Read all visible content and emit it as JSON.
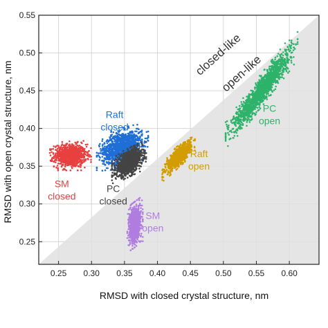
{
  "chart_data": {
    "type": "scatter",
    "xlabel": "RMSD with closed crystal structure, nm",
    "ylabel": "RMSD with open crystal structure, nm",
    "xlim": [
      0.22,
      0.645
    ],
    "ylim": [
      0.22,
      0.55
    ],
    "xticks": [
      "0.25",
      "0.30",
      "0.35",
      "0.40",
      "0.45",
      "0.50",
      "0.55",
      "0.60"
    ],
    "yticks": [
      "0.25",
      "0.30",
      "0.35",
      "0.40",
      "0.45",
      "0.50",
      "0.55"
    ],
    "xtick_values": [
      0.25,
      0.3,
      0.35,
      0.4,
      0.45,
      0.5,
      0.55,
      0.6
    ],
    "ytick_values": [
      0.25,
      0.3,
      0.35,
      0.4,
      0.45,
      0.5,
      0.55
    ],
    "grid": true,
    "diagonal_shading": {
      "from": [
        0.22,
        0.22
      ],
      "to": [
        0.645,
        0.55
      ],
      "color": "#e0e0e0"
    },
    "region_labels": [
      {
        "text": "closed-like",
        "x": 0.5,
        "y": 0.49
      },
      {
        "text": "open-like",
        "x": 0.52,
        "y": 0.48
      }
    ],
    "clusters": [
      {
        "label_lines": [
          "SM",
          "closed"
        ],
        "label_x": 0.255,
        "label_y": 0.322,
        "color": "#e8403f",
        "cx": 0.268,
        "cy": 0.364,
        "sx": 0.012,
        "sy": 0.0075,
        "rho": 0.0,
        "n": 900
      },
      {
        "label_lines": [
          "Raft",
          "closed"
        ],
        "label_x": 0.335,
        "label_y": 0.414,
        "color": "#1f6fd6",
        "cx": 0.347,
        "cy": 0.375,
        "sx": 0.015,
        "sy": 0.0105,
        "rho": 0.35,
        "n": 1300
      },
      {
        "label_lines": [
          "PC",
          "closed"
        ],
        "label_x": 0.333,
        "label_y": 0.316,
        "color": "#444444",
        "cx": 0.357,
        "cy": 0.355,
        "sx": 0.01,
        "sy": 0.0085,
        "rho": 0.5,
        "n": 1100
      },
      {
        "label_lines": [
          "Raft",
          "open"
        ],
        "label_x": 0.463,
        "label_y": 0.362,
        "color": "#d39d00",
        "cx": 0.432,
        "cy": 0.363,
        "sx": 0.0095,
        "sy": 0.0095,
        "rho": 0.8,
        "n": 900
      },
      {
        "label_lines": [
          "PC",
          "open"
        ],
        "label_x": 0.57,
        "label_y": 0.422,
        "color": "#2db36a",
        "cx": 0.558,
        "cy": 0.451,
        "sx": 0.021,
        "sy": 0.025,
        "rho": 0.94,
        "n": 1600
      },
      {
        "label_lines": [
          "SM",
          "open"
        ],
        "label_x": 0.393,
        "label_y": 0.28,
        "color": "#b07de0",
        "cx": 0.366,
        "cy": 0.273,
        "sx": 0.0045,
        "sy": 0.012,
        "rho": 0.25,
        "n": 900
      }
    ]
  }
}
